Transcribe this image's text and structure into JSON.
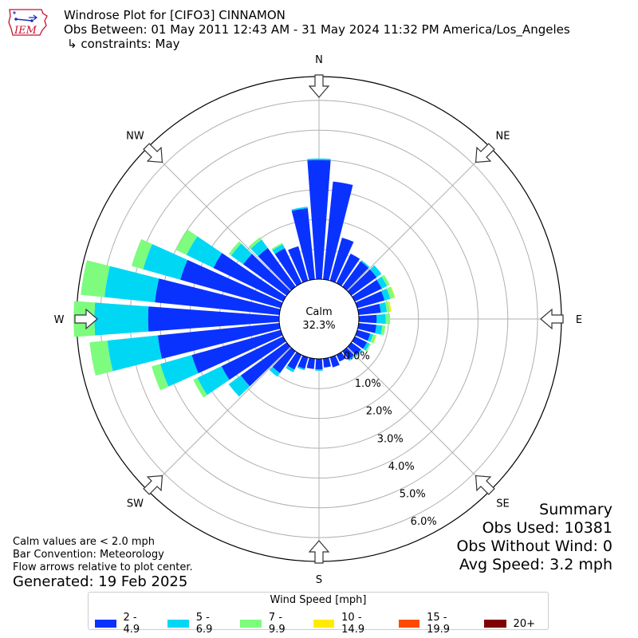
{
  "header": {
    "title": "Windrose Plot for [CIFO3] CINNAMON",
    "period": "Obs Between: 01 May 2011 12:43 AM - 31 May 2024 11:32 PM America/Los_Angeles",
    "constraints": "↳ constraints: May"
  },
  "logo": {
    "text": "IEM"
  },
  "notes": {
    "calm": "Calm values are < 2.0 mph",
    "convention": "Bar Convention: Meteorology",
    "arrows": "Flow arrows relative to plot center.",
    "generated": "Generated: 19 Feb 2025"
  },
  "summary": {
    "heading": "Summary",
    "obs_used": "Obs Used: 10381",
    "obs_without_wind": "Obs Without Wind: 0",
    "avg_speed": "Avg Speed: 3.2 mph"
  },
  "legend": {
    "title": "Wind Speed [mph]",
    "items": [
      {
        "label": "2 - 4.9",
        "color": "#0a32ff"
      },
      {
        "label": "5 - 6.9",
        "color": "#00d7f5"
      },
      {
        "label": "7 - 9.9",
        "color": "#7dfc7d"
      },
      {
        "label": "10 - 14.9",
        "color": "#ffeb00"
      },
      {
        "label": "15 - 19.9",
        "color": "#ff4a00"
      },
      {
        "label": "20+",
        "color": "#7f0000"
      }
    ]
  },
  "chart_data": {
    "type": "windrose",
    "calm_label": "Calm",
    "calm_value": "32.3%",
    "radial_ticks": [
      "0.0%",
      "1.0%",
      "2.0%",
      "3.0%",
      "4.0%",
      "5.0%",
      "6.0%"
    ],
    "rmax": 6.8,
    "compass_labels": [
      {
        "label": "N",
        "deg": 0
      },
      {
        "label": "NE",
        "deg": 45
      },
      {
        "label": "E",
        "deg": 90
      },
      {
        "label": "SE",
        "deg": 135
      },
      {
        "label": "S",
        "deg": 180
      },
      {
        "label": "SW",
        "deg": 225
      },
      {
        "label": "W",
        "deg": 270
      },
      {
        "label": "NW",
        "deg": 315
      }
    ],
    "bin_width_deg": 10,
    "series": [
      "2 - 4.9",
      "5 - 6.9",
      "7 - 9.9",
      "10 - 14.9",
      "15 - 19.9",
      "20+"
    ],
    "directions": [
      {
        "deg": 0,
        "values": [
          4.0,
          0.05,
          0,
          0,
          0,
          0
        ]
      },
      {
        "deg": 10,
        "values": [
          3.3,
          0,
          0,
          0,
          0,
          0
        ]
      },
      {
        "deg": 20,
        "values": [
          1.5,
          0,
          0,
          0,
          0,
          0
        ]
      },
      {
        "deg": 30,
        "values": [
          1.1,
          0,
          0,
          0,
          0,
          0
        ]
      },
      {
        "deg": 40,
        "values": [
          1.05,
          0.05,
          0,
          0,
          0,
          0
        ]
      },
      {
        "deg": 50,
        "values": [
          1.05,
          0.2,
          0,
          0,
          0,
          0
        ]
      },
      {
        "deg": 60,
        "values": [
          1.0,
          0.2,
          0.1,
          0,
          0,
          0
        ]
      },
      {
        "deg": 70,
        "values": [
          0.95,
          0.2,
          0.15,
          0.02,
          0,
          0
        ]
      },
      {
        "deg": 80,
        "values": [
          0.75,
          0.2,
          0.1,
          0.05,
          0,
          0
        ]
      },
      {
        "deg": 90,
        "values": [
          0.6,
          0.3,
          0.15,
          0,
          0,
          0
        ]
      },
      {
        "deg": 100,
        "values": [
          0.6,
          0.2,
          0.1,
          0,
          0,
          0
        ]
      },
      {
        "deg": 110,
        "values": [
          0.45,
          0.1,
          0.1,
          0.02,
          0,
          0
        ]
      },
      {
        "deg": 120,
        "values": [
          0.45,
          0.1,
          0.05,
          0,
          0,
          0
        ]
      },
      {
        "deg": 130,
        "values": [
          0.4,
          0.05,
          0,
          0,
          0,
          0
        ]
      },
      {
        "deg": 140,
        "values": [
          0.35,
          0.05,
          0,
          0,
          0,
          0
        ]
      },
      {
        "deg": 150,
        "values": [
          0.25,
          0,
          0,
          0,
          0,
          0
        ]
      },
      {
        "deg": 160,
        "values": [
          0.35,
          0,
          0,
          0,
          0,
          0
        ]
      },
      {
        "deg": 170,
        "values": [
          0.3,
          0,
          0,
          0,
          0,
          0
        ]
      },
      {
        "deg": 180,
        "values": [
          0.35,
          0.05,
          0,
          0,
          0,
          0
        ]
      },
      {
        "deg": 190,
        "values": [
          0.35,
          0,
          0,
          0,
          0,
          0
        ]
      },
      {
        "deg": 200,
        "values": [
          0.4,
          0.05,
          0,
          0,
          0,
          0
        ]
      },
      {
        "deg": 210,
        "values": [
          0.55,
          0.1,
          0,
          0,
          0,
          0
        ]
      },
      {
        "deg": 220,
        "values": [
          0.9,
          0.15,
          0,
          0,
          0,
          0
        ]
      },
      {
        "deg": 230,
        "values": [
          1.9,
          0.5,
          0,
          0,
          0,
          0
        ]
      },
      {
        "deg": 240,
        "values": [
          2.3,
          0.9,
          0.15,
          0,
          0,
          0
        ]
      },
      {
        "deg": 250,
        "values": [
          3.1,
          1.1,
          0.3,
          0,
          0,
          0
        ]
      },
      {
        "deg": 260,
        "values": [
          4.1,
          1.7,
          0.6,
          0,
          0,
          0
        ]
      },
      {
        "deg": 270,
        "values": [
          4.4,
          1.8,
          0.7,
          0,
          0,
          0
        ]
      },
      {
        "deg": 280,
        "values": [
          4.2,
          1.7,
          0.8,
          0,
          0,
          0
        ]
      },
      {
        "deg": 290,
        "values": [
          3.5,
          1.3,
          0.4,
          0,
          0,
          0
        ]
      },
      {
        "deg": 300,
        "values": [
          2.6,
          1.0,
          0.4,
          0,
          0,
          0
        ]
      },
      {
        "deg": 310,
        "values": [
          1.8,
          0.5,
          0.1,
          0,
          0,
          0
        ]
      },
      {
        "deg": 320,
        "values": [
          1.6,
          0.35,
          0.1,
          0,
          0,
          0
        ]
      },
      {
        "deg": 330,
        "values": [
          1.3,
          0.15,
          0.05,
          0,
          0,
          0
        ]
      },
      {
        "deg": 340,
        "values": [
          1.2,
          0,
          0,
          0,
          0,
          0
        ]
      },
      {
        "deg": 350,
        "values": [
          2.4,
          0.05,
          0,
          0,
          0,
          0
        ]
      }
    ]
  }
}
